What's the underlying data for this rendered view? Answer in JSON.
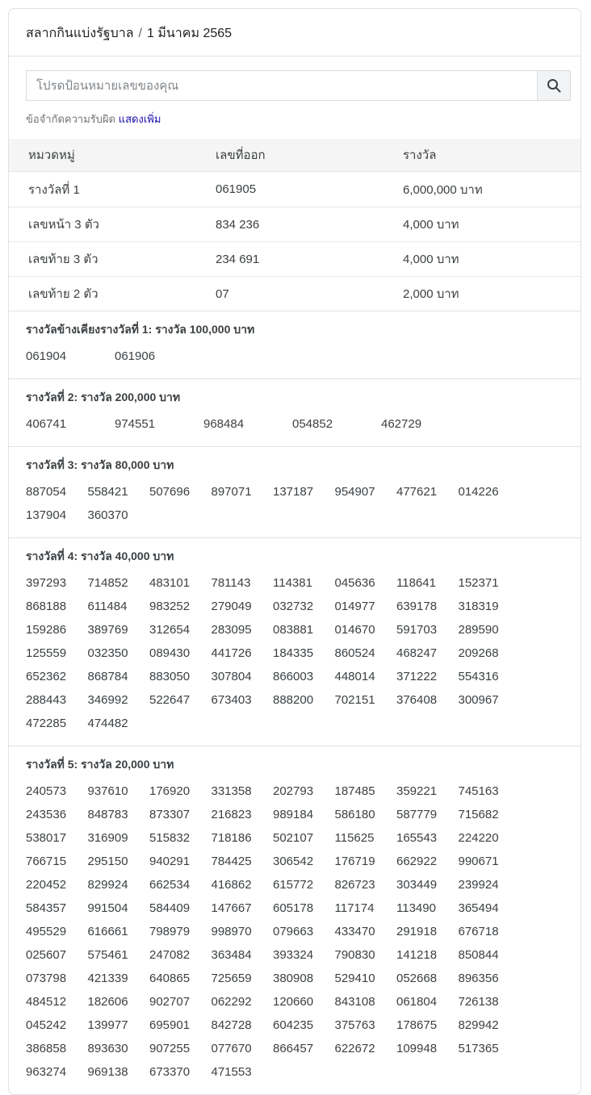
{
  "breadcrumb": {
    "root": "สลากกินแบ่งรัฐบาล",
    "separator": "/",
    "current": "1 มีนาคม 2565"
  },
  "search": {
    "placeholder": "โปรดป้อนหมายเลขของคุณ",
    "value": "",
    "icon": "magnifier-icon"
  },
  "disclaimer": {
    "text": "ข้อจำกัดความรับผิด",
    "link_label": "แสดงเพิ่ม"
  },
  "main_table": {
    "headers": [
      "หมวดหมู่",
      "เลขที่ออก",
      "รางวัล"
    ],
    "rows": [
      [
        "รางวัลที่ 1",
        "061905",
        "6,000,000 บาท"
      ],
      [
        "เลขหน้า 3 ตัว",
        "834 236",
        "4,000 บาท"
      ],
      [
        "เลขท้าย 3 ตัว",
        "234 691",
        "4,000 บาท"
      ],
      [
        "เลขท้าย 2 ตัว",
        "07",
        "2,000 บาท"
      ]
    ]
  },
  "sections": [
    {
      "title": "รางวัลข้างเคียงรางวัลที่ 1: รางวัล 100,000 บาท",
      "wide": true,
      "numbers": [
        "061904",
        "061906"
      ]
    },
    {
      "title": "รางวัลที่ 2: รางวัล 200,000 บาท",
      "wide": true,
      "numbers": [
        "406741",
        "974551",
        "968484",
        "054852",
        "462729"
      ]
    },
    {
      "title": "รางวัลที่ 3: รางวัล 80,000 บาท",
      "wide": false,
      "numbers": [
        "887054",
        "558421",
        "507696",
        "897071",
        "137187",
        "954907",
        "477621",
        "014226",
        "137904",
        "360370"
      ]
    },
    {
      "title": "รางวัลที่ 4: รางวัล 40,000 บาท",
      "wide": false,
      "numbers": [
        "397293",
        "714852",
        "483101",
        "781143",
        "114381",
        "045636",
        "118641",
        "152371",
        "868188",
        "611484",
        "983252",
        "279049",
        "032732",
        "014977",
        "639178",
        "318319",
        "159286",
        "389769",
        "312654",
        "283095",
        "083881",
        "014670",
        "591703",
        "289590",
        "125559",
        "032350",
        "089430",
        "441726",
        "184335",
        "860524",
        "468247",
        "209268",
        "652362",
        "868784",
        "883050",
        "307804",
        "866003",
        "448014",
        "371222",
        "554316",
        "288443",
        "346992",
        "522647",
        "673403",
        "888200",
        "702151",
        "376408",
        "300967",
        "472285",
        "474482"
      ]
    },
    {
      "title": "รางวัลที่ 5: รางวัล 20,000 บาท",
      "wide": false,
      "numbers": [
        "240573",
        "937610",
        "176920",
        "331358",
        "202793",
        "187485",
        "359221",
        "745163",
        "243536",
        "848783",
        "873307",
        "216823",
        "989184",
        "586180",
        "587779",
        "715682",
        "538017",
        "316909",
        "515832",
        "718186",
        "502107",
        "115625",
        "165543",
        "224220",
        "766715",
        "295150",
        "940291",
        "784425",
        "306542",
        "176719",
        "662922",
        "990671",
        "220452",
        "829924",
        "662534",
        "416862",
        "615772",
        "826723",
        "303449",
        "239924",
        "584357",
        "991504",
        "584409",
        "147667",
        "605178",
        "117174",
        "113490",
        "365494",
        "495529",
        "616661",
        "798979",
        "998970",
        "079663",
        "433470",
        "291918",
        "676718",
        "025607",
        "575461",
        "247082",
        "363484",
        "393324",
        "790830",
        "141218",
        "850844",
        "073798",
        "421339",
        "640865",
        "725659",
        "380908",
        "529410",
        "052668",
        "896356",
        "484512",
        "182606",
        "902707",
        "062292",
        "120660",
        "843108",
        "061804",
        "726138",
        "045242",
        "139977",
        "695901",
        "842728",
        "604235",
        "375763",
        "178675",
        "829942",
        "386858",
        "893630",
        "907255",
        "077670",
        "866457",
        "622672",
        "109948",
        "517365",
        "963274",
        "969138",
        "673370",
        "471553"
      ]
    }
  ],
  "colors": {
    "link": "#1a0dab",
    "card_border": "#dfe1e5",
    "table_header_bg": "#f5f5f5",
    "text_primary": "#202124",
    "text_secondary": "#3c4043",
    "text_muted": "#70757a",
    "search_button_bg": "#f1f3f4"
  }
}
